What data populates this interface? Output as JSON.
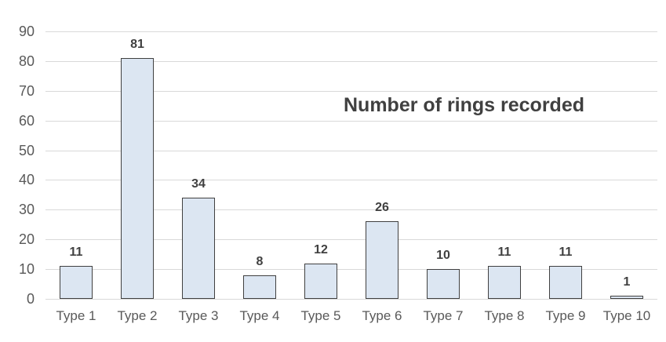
{
  "chart_data": {
    "type": "bar",
    "title": "Number of rings recorded",
    "categories": [
      "Type 1",
      "Type 2",
      "Type 3",
      "Type 4",
      "Type 5",
      "Type 6",
      "Type 7",
      "Type 8",
      "Type 9",
      "Type 10"
    ],
    "values": [
      11,
      81,
      34,
      8,
      12,
      26,
      10,
      11,
      11,
      1
    ],
    "xlabel": "",
    "ylabel": "",
    "ylim": [
      0,
      90
    ],
    "ytick_step": 10,
    "ytick_labels": [
      "0",
      "10",
      "20",
      "30",
      "40",
      "50",
      "60",
      "70",
      "80",
      "90"
    ],
    "grid": true,
    "legend": "none",
    "colors": {
      "background": "#ffffff",
      "bar_fill": "#dce6f2",
      "bar_border": "#404040",
      "gridline": "#d9d9d9",
      "axis_text": "#595959",
      "label_text": "#404040",
      "title_text": "#404040"
    }
  }
}
